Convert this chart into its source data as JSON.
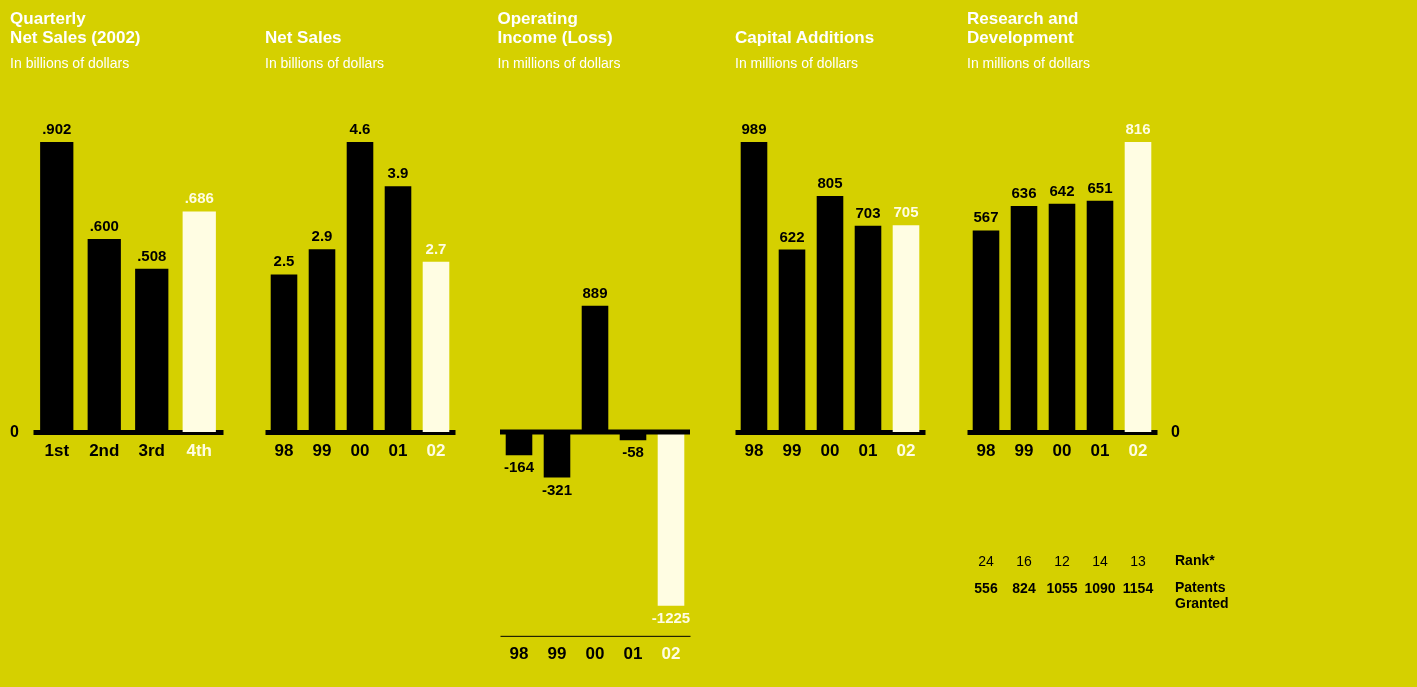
{
  "chart_data": [
    {
      "type": "bar",
      "title": "Quarterly Net Sales (2002)",
      "subtitle": "In billions of dollars",
      "categories": [
        "1st",
        "2nd",
        "3rd",
        "4th"
      ],
      "values": [
        0.902,
        0.6,
        0.508,
        0.686
      ],
      "value_labels": [
        ".902",
        ".600",
        ".508",
        ".686"
      ],
      "colors": [
        "#000000",
        "#000000",
        "#000000",
        "#fffde3"
      ],
      "tick_labels": "x",
      "annotations": [
        "0"
      ]
    },
    {
      "type": "bar",
      "title": "Net Sales",
      "subtitle": "In billions of dollars",
      "categories": [
        "98",
        "99",
        "00",
        "01",
        "02"
      ],
      "values": [
        2.5,
        2.9,
        4.6,
        3.9,
        2.7
      ],
      "data_labels": true,
      "colors": [
        "#000000",
        "#000000",
        "#000000",
        "#000000",
        "#fffde3"
      ],
      "tick_labels": "x"
    },
    {
      "type": "bar",
      "title": "Operating Income (Loss)",
      "subtitle": "In millions of dollars",
      "categories": [
        "98",
        "99",
        "00",
        "01",
        "02"
      ],
      "values": [
        -164,
        -321,
        889,
        -58,
        -1225
      ],
      "data_labels": true,
      "colors": [
        "#000000",
        "#000000",
        "#000000",
        "#000000",
        "#fffde3"
      ],
      "tick_labels": "x",
      "ref_lines": [
        {
          "axis": "y",
          "value": 0,
          "color": "#000000"
        }
      ]
    },
    {
      "type": "bar",
      "title": "Capital Additions",
      "subtitle": "In millions of dollars",
      "categories": [
        "98",
        "99",
        "00",
        "01",
        "02"
      ],
      "values": [
        989,
        622,
        805,
        703,
        705
      ],
      "data_labels": true,
      "colors": [
        "#000000",
        "#000000",
        "#000000",
        "#000000",
        "#fffde3"
      ],
      "tick_labels": "x"
    },
    {
      "type": "bar",
      "title": "Research and Development",
      "subtitle": "In millions of dollars",
      "categories": [
        "98",
        "99",
        "00",
        "01",
        "02"
      ],
      "values": [
        567,
        636,
        642,
        651,
        816
      ],
      "data_labels": true,
      "colors": [
        "#000000",
        "#000000",
        "#000000",
        "#000000",
        "#fffde3"
      ],
      "tick_labels": "x",
      "annotations": [
        "0",
        "Rank*",
        "Patents Granted",
        "24",
        "556",
        "16",
        "824",
        "12",
        "1055",
        "14",
        "1090",
        "13",
        "1154"
      ]
    }
  ]
}
